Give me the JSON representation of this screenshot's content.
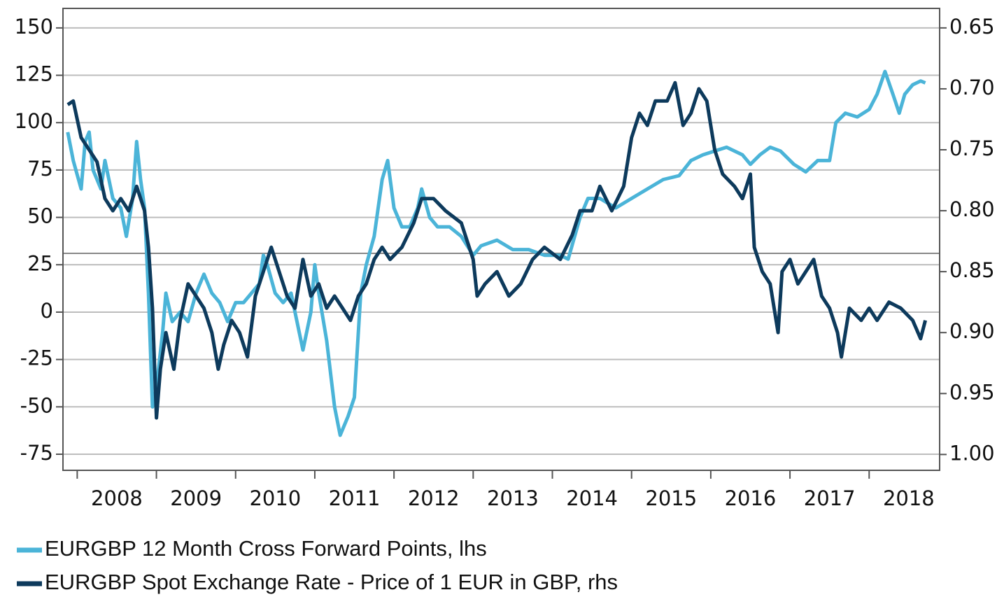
{
  "chart_data": {
    "type": "line",
    "xlim": [
      2007.82,
      2018.89
    ],
    "xticks": [
      2008,
      2009,
      2010,
      2011,
      2012,
      2013,
      2014,
      2015,
      2016,
      2017,
      2018
    ],
    "ylim": [
      -83.5,
      160.3
    ],
    "yticks": [
      -75,
      -50,
      -25,
      0,
      25,
      50,
      75,
      100,
      125,
      150
    ],
    "y2lim": [
      1.013,
      0.634
    ],
    "y2ticks": [
      {
        "value": 1,
        "label": "1.00"
      },
      0.95,
      {
        "value": 0.9,
        "label": "0.90"
      },
      0.85,
      {
        "value": 0.8,
        "label": "0.80"
      },
      0.75,
      {
        "value": 0.7,
        "label": "0.70"
      },
      0.65
    ],
    "grid": true,
    "legend": "bottom",
    "reference_line": {
      "axis": "y2",
      "value": 0.835,
      "color": "#888888"
    },
    "series": [
      {
        "name": "EURGBP 12 Month Cross Forward Points, lhs",
        "color": "#4bb4d8",
        "axis": "y",
        "x": [
          2007.88,
          2007.95,
          2008.05,
          2008.1,
          2008.15,
          2008.2,
          2008.3,
          2008.35,
          2008.45,
          2008.55,
          2008.62,
          2008.7,
          2008.75,
          2008.8,
          2008.85,
          2008.9,
          2008.95,
          2009.0,
          2009.08,
          2009.12,
          2009.2,
          2009.3,
          2009.4,
          2009.5,
          2009.6,
          2009.7,
          2009.8,
          2009.9,
          2010.0,
          2010.1,
          2010.2,
          2010.3,
          2010.35,
          2010.4,
          2010.5,
          2010.6,
          2010.7,
          2010.8,
          2010.85,
          2010.95,
          2011.0,
          2011.05,
          2011.15,
          2011.25,
          2011.32,
          2011.42,
          2011.5,
          2011.58,
          2011.65,
          2011.75,
          2011.85,
          2011.92,
          2012.0,
          2012.1,
          2012.2,
          2012.3,
          2012.35,
          2012.45,
          2012.55,
          2012.7,
          2012.85,
          2013.0,
          2013.1,
          2013.3,
          2013.5,
          2013.7,
          2013.9,
          2014.1,
          2014.2,
          2014.35,
          2014.45,
          2014.6,
          2014.8,
          2015.0,
          2015.2,
          2015.4,
          2015.6,
          2015.75,
          2015.9,
          2016.05,
          2016.2,
          2016.4,
          2016.5,
          2016.62,
          2016.75,
          2016.88,
          2017.05,
          2017.2,
          2017.35,
          2017.5,
          2017.58,
          2017.7,
          2017.85,
          2018.0,
          2018.1,
          2018.2,
          2018.3,
          2018.38,
          2018.45,
          2018.55,
          2018.65,
          2018.71
        ],
        "values": [
          95,
          80,
          65,
          90,
          95,
          75,
          65,
          80,
          60,
          55,
          40,
          60,
          90,
          70,
          55,
          10,
          -50,
          -40,
          -10,
          10,
          -5,
          0,
          -5,
          10,
          20,
          10,
          5,
          -5,
          5,
          5,
          10,
          15,
          30,
          25,
          10,
          5,
          10,
          -10,
          -20,
          0,
          25,
          10,
          -15,
          -50,
          -65,
          -55,
          -45,
          10,
          25,
          40,
          70,
          80,
          55,
          45,
          45,
          55,
          65,
          50,
          45,
          45,
          40,
          30,
          35,
          38,
          33,
          33,
          30,
          30,
          28,
          50,
          60,
          60,
          55,
          60,
          65,
          70,
          72,
          80,
          83,
          85,
          87,
          83,
          78,
          83,
          87,
          85,
          78,
          74,
          80,
          80,
          100,
          105,
          103,
          107,
          115,
          127,
          115,
          105,
          115,
          120,
          122,
          121
        ]
      },
      {
        "name": "EURGBP Spot Exchange Rate - Price of 1 EUR in GBP, rhs",
        "color": "#0d3a5c",
        "axis": "y2",
        "x": [
          2007.88,
          2007.95,
          2008.05,
          2008.15,
          2008.25,
          2008.35,
          2008.45,
          2008.55,
          2008.65,
          2008.75,
          2008.85,
          2008.9,
          2008.95,
          2009.0,
          2009.05,
          2009.12,
          2009.22,
          2009.3,
          2009.4,
          2009.5,
          2009.6,
          2009.7,
          2009.78,
          2009.85,
          2009.95,
          2010.05,
          2010.15,
          2010.25,
          2010.35,
          2010.45,
          2010.55,
          2010.65,
          2010.75,
          2010.85,
          2010.95,
          2011.05,
          2011.15,
          2011.25,
          2011.35,
          2011.45,
          2011.55,
          2011.65,
          2011.75,
          2011.85,
          2011.95,
          2012.1,
          2012.25,
          2012.35,
          2012.5,
          2012.65,
          2012.85,
          2013.0,
          2013.05,
          2013.15,
          2013.3,
          2013.45,
          2013.6,
          2013.75,
          2013.9,
          2014.1,
          2014.25,
          2014.35,
          2014.5,
          2014.6,
          2014.75,
          2014.9,
          2015.0,
          2015.1,
          2015.2,
          2015.3,
          2015.45,
          2015.55,
          2015.65,
          2015.75,
          2015.85,
          2015.95,
          2016.05,
          2016.15,
          2016.3,
          2016.4,
          2016.5,
          2016.55,
          2016.65,
          2016.75,
          2016.85,
          2016.9,
          2017.0,
          2017.1,
          2017.2,
          2017.3,
          2017.4,
          2017.5,
          2017.6,
          2017.65,
          2017.75,
          2017.9,
          2018.0,
          2018.1,
          2018.25,
          2018.4,
          2018.55,
          2018.65,
          2018.71
        ],
        "values": [
          0.713,
          0.71,
          0.74,
          0.75,
          0.76,
          0.79,
          0.8,
          0.79,
          0.8,
          0.78,
          0.8,
          0.83,
          0.88,
          0.97,
          0.93,
          0.9,
          0.93,
          0.89,
          0.86,
          0.87,
          0.88,
          0.9,
          0.93,
          0.91,
          0.89,
          0.9,
          0.92,
          0.87,
          0.85,
          0.83,
          0.85,
          0.87,
          0.88,
          0.84,
          0.87,
          0.86,
          0.88,
          0.87,
          0.88,
          0.89,
          0.87,
          0.86,
          0.84,
          0.83,
          0.84,
          0.83,
          0.81,
          0.79,
          0.79,
          0.8,
          0.81,
          0.84,
          0.87,
          0.86,
          0.85,
          0.87,
          0.86,
          0.84,
          0.83,
          0.84,
          0.82,
          0.8,
          0.8,
          0.78,
          0.8,
          0.78,
          0.74,
          0.72,
          0.73,
          0.71,
          0.71,
          0.695,
          0.73,
          0.72,
          0.7,
          0.71,
          0.75,
          0.77,
          0.78,
          0.79,
          0.77,
          0.83,
          0.85,
          0.86,
          0.9,
          0.85,
          0.84,
          0.86,
          0.85,
          0.84,
          0.87,
          0.88,
          0.9,
          0.92,
          0.88,
          0.89,
          0.88,
          0.89,
          0.875,
          0.88,
          0.89,
          0.905,
          0.89
        ]
      }
    ]
  }
}
